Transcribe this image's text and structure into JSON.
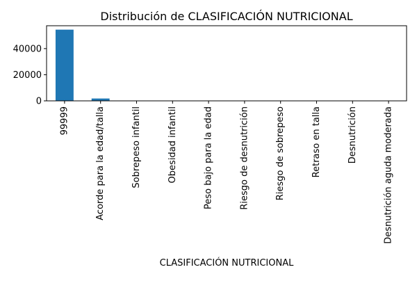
{
  "chart_data": {
    "type": "bar",
    "title": "Distribución de CLASIFICACIÓN NUTRICIONAL",
    "xlabel": "CLASIFICACIÓN NUTRICIONAL",
    "ylabel": "",
    "categories": [
      "99999",
      "Acorde para la edad/talla",
      "Sobrepeso infantil",
      "Obesidad infantil",
      "Peso bajo para la edad",
      "Riesgo de desnutrición",
      "Riesgo de sobrepeso",
      "Retraso en talla",
      "Desnutrición",
      "Desnutrición aguda moderada"
    ],
    "values": [
      54500,
      1800,
      120,
      60,
      40,
      30,
      25,
      15,
      10,
      5
    ],
    "ylim": [
      0,
      57500
    ],
    "yticks": [
      0,
      20000,
      40000
    ],
    "bar_color": "#1f77b4",
    "grid": false,
    "legend": "none"
  }
}
